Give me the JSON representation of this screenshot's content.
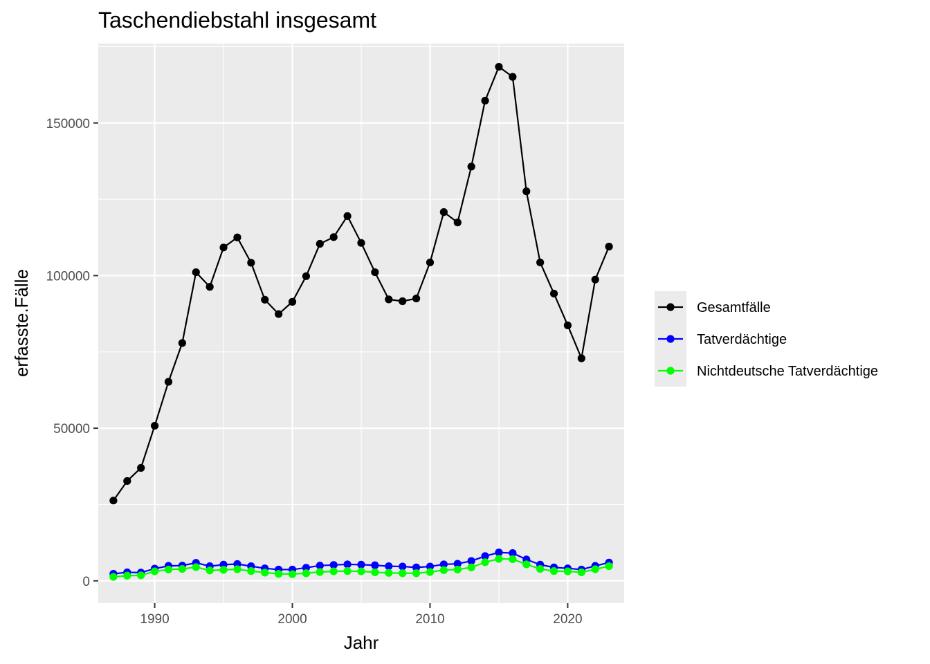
{
  "chart_data": {
    "type": "line",
    "title": "Taschendiebstahl insgesamt",
    "xlabel": "Jahr",
    "ylabel": "erfasste.Fälle",
    "xlim": [
      1985.9,
      2024.1
    ],
    "ylim": [
      -7300,
      176000
    ],
    "x_ticks": [
      1990,
      2000,
      2010,
      2020
    ],
    "x_tick_labels": [
      "1990",
      "2000",
      "2010",
      "2020"
    ],
    "y_ticks": [
      0,
      50000,
      100000,
      150000
    ],
    "y_tick_labels": [
      "0",
      "50000",
      "100000",
      "150000"
    ],
    "grid": true,
    "legend_position": "right",
    "x": [
      1987,
      1988,
      1989,
      1990,
      1991,
      1992,
      1993,
      1994,
      1995,
      1996,
      1997,
      1998,
      1999,
      2000,
      2001,
      2002,
      2003,
      2004,
      2005,
      2006,
      2007,
      2008,
      2009,
      2010,
      2011,
      2012,
      2013,
      2014,
      2015,
      2016,
      2017,
      2018,
      2019,
      2020,
      2021,
      2022,
      2023
    ],
    "series": [
      {
        "name": "Gesamtfälle",
        "color": "#000000",
        "values": [
          26300,
          32700,
          37000,
          50800,
          65200,
          77900,
          101100,
          96300,
          109200,
          112500,
          104200,
          92100,
          87400,
          91400,
          99800,
          110400,
          112600,
          119500,
          110700,
          101100,
          92200,
          91600,
          92500,
          104300,
          120800,
          117400,
          135700,
          157300,
          168400,
          165100,
          127600,
          104300,
          94100,
          83700,
          72900,
          98700,
          109500
        ]
      },
      {
        "name": "Tatverdächtige",
        "color": "#0000ff",
        "values": [
          2300,
          2800,
          2700,
          4000,
          4900,
          5000,
          5900,
          4800,
          5300,
          5500,
          4800,
          4100,
          3700,
          3700,
          4300,
          5000,
          5200,
          5400,
          5300,
          5100,
          4800,
          4700,
          4400,
          4700,
          5400,
          5600,
          6500,
          8100,
          9300,
          9100,
          7000,
          5300,
          4400,
          4100,
          3700,
          4900,
          6000
        ]
      },
      {
        "name": "Nichtdeutsche Tatverdächtige",
        "color": "#00ff00",
        "values": [
          1300,
          1700,
          1800,
          3100,
          3700,
          3900,
          4500,
          3400,
          3600,
          3800,
          3200,
          2700,
          2300,
          2200,
          2500,
          2900,
          3100,
          3200,
          3100,
          2800,
          2600,
          2500,
          2500,
          2900,
          3500,
          3700,
          4400,
          6100,
          7200,
          7100,
          5400,
          3900,
          3200,
          3100,
          2800,
          3800,
          4800
        ]
      }
    ]
  }
}
